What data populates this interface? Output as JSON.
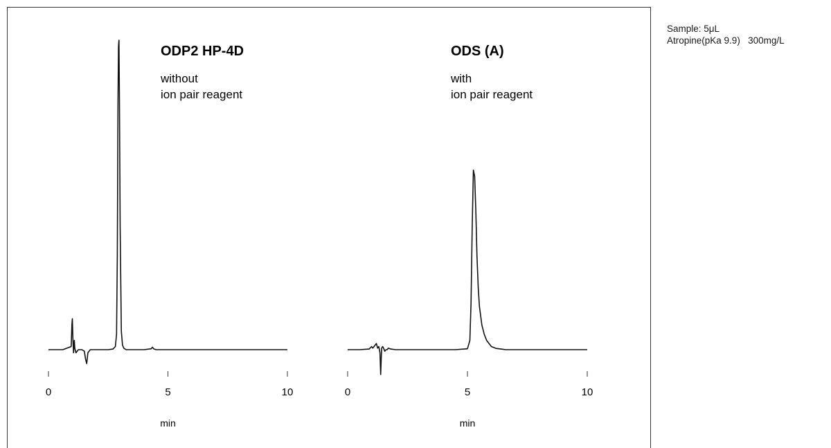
{
  "sample_info": {
    "line1": "Sample: 5μL",
    "line2": "Atropine(pKa 9.9)   300mg/L"
  },
  "chart_data": [
    {
      "type": "line",
      "title": "ODP2 HP-4D",
      "subtitle": [
        "without",
        "ion pair reagent"
      ],
      "xlabel": "min",
      "ylabel": "",
      "xlim": [
        0,
        10
      ],
      "x_ticks": [
        0,
        5,
        10
      ],
      "ylim": [
        -0.05,
        1.0
      ],
      "grid": false,
      "series": [
        {
          "x": [
            0.0,
            0.6,
            0.95,
            0.98,
            1.0,
            1.02,
            1.05,
            1.08,
            1.1,
            1.15,
            1.25,
            1.4,
            1.5,
            1.55,
            1.6,
            1.65,
            1.75,
            2.0,
            2.5,
            2.7,
            2.8,
            2.85,
            2.88,
            2.91,
            2.93,
            2.95,
            2.97,
            3.0,
            3.05,
            3.1,
            3.15,
            3.25,
            3.4,
            3.6,
            4.0,
            4.3,
            4.35,
            4.4,
            4.5,
            5.0,
            6.0,
            7.0,
            8.0,
            9.0,
            10.0
          ],
          "y": [
            0.0,
            0.0,
            0.01,
            0.08,
            0.1,
            0.04,
            -0.01,
            0.03,
            0.005,
            -0.01,
            0.0,
            0.0,
            -0.005,
            -0.03,
            -0.045,
            -0.01,
            0.0,
            0.0,
            0.0,
            0.002,
            0.01,
            0.05,
            0.3,
            0.8,
            0.98,
            1.0,
            0.8,
            0.4,
            0.06,
            0.015,
            0.005,
            0.0,
            0.0,
            0.0,
            0.0,
            0.003,
            0.008,
            0.003,
            0.0,
            0.0,
            0.0,
            0.0,
            0.0,
            0.0,
            0.0
          ]
        }
      ]
    },
    {
      "type": "line",
      "title": "ODS (A)",
      "subtitle": [
        "with",
        "ion pair reagent"
      ],
      "xlabel": "min",
      "ylabel": "",
      "xlim": [
        0,
        10
      ],
      "x_ticks": [
        0,
        5,
        10
      ],
      "ylim": [
        -0.05,
        1.0
      ],
      "grid": false,
      "series": [
        {
          "x": [
            0.0,
            0.5,
            0.9,
            1.0,
            1.05,
            1.15,
            1.2,
            1.25,
            1.3,
            1.35,
            1.38,
            1.42,
            1.46,
            1.5,
            1.55,
            1.6,
            1.65,
            1.7,
            1.8,
            2.0,
            3.0,
            4.5,
            5.0,
            5.1,
            5.15,
            5.2,
            5.25,
            5.3,
            5.35,
            5.4,
            5.45,
            5.5,
            5.6,
            5.7,
            5.8,
            6.0,
            6.2,
            6.4,
            6.6,
            7.0,
            8.0,
            9.0,
            10.0
          ],
          "y": [
            0.0,
            0.0,
            0.002,
            0.01,
            0.005,
            0.015,
            0.02,
            0.005,
            0.01,
            -0.01,
            -0.08,
            0.005,
            0.01,
            0.005,
            -0.005,
            0.0,
            0.0,
            0.005,
            0.002,
            0.0,
            0.0,
            0.0,
            0.003,
            0.03,
            0.15,
            0.4,
            0.58,
            0.56,
            0.45,
            0.3,
            0.2,
            0.14,
            0.08,
            0.05,
            0.03,
            0.01,
            0.004,
            0.002,
            0.0,
            0.0,
            0.0,
            0.0,
            0.0
          ]
        }
      ]
    }
  ]
}
